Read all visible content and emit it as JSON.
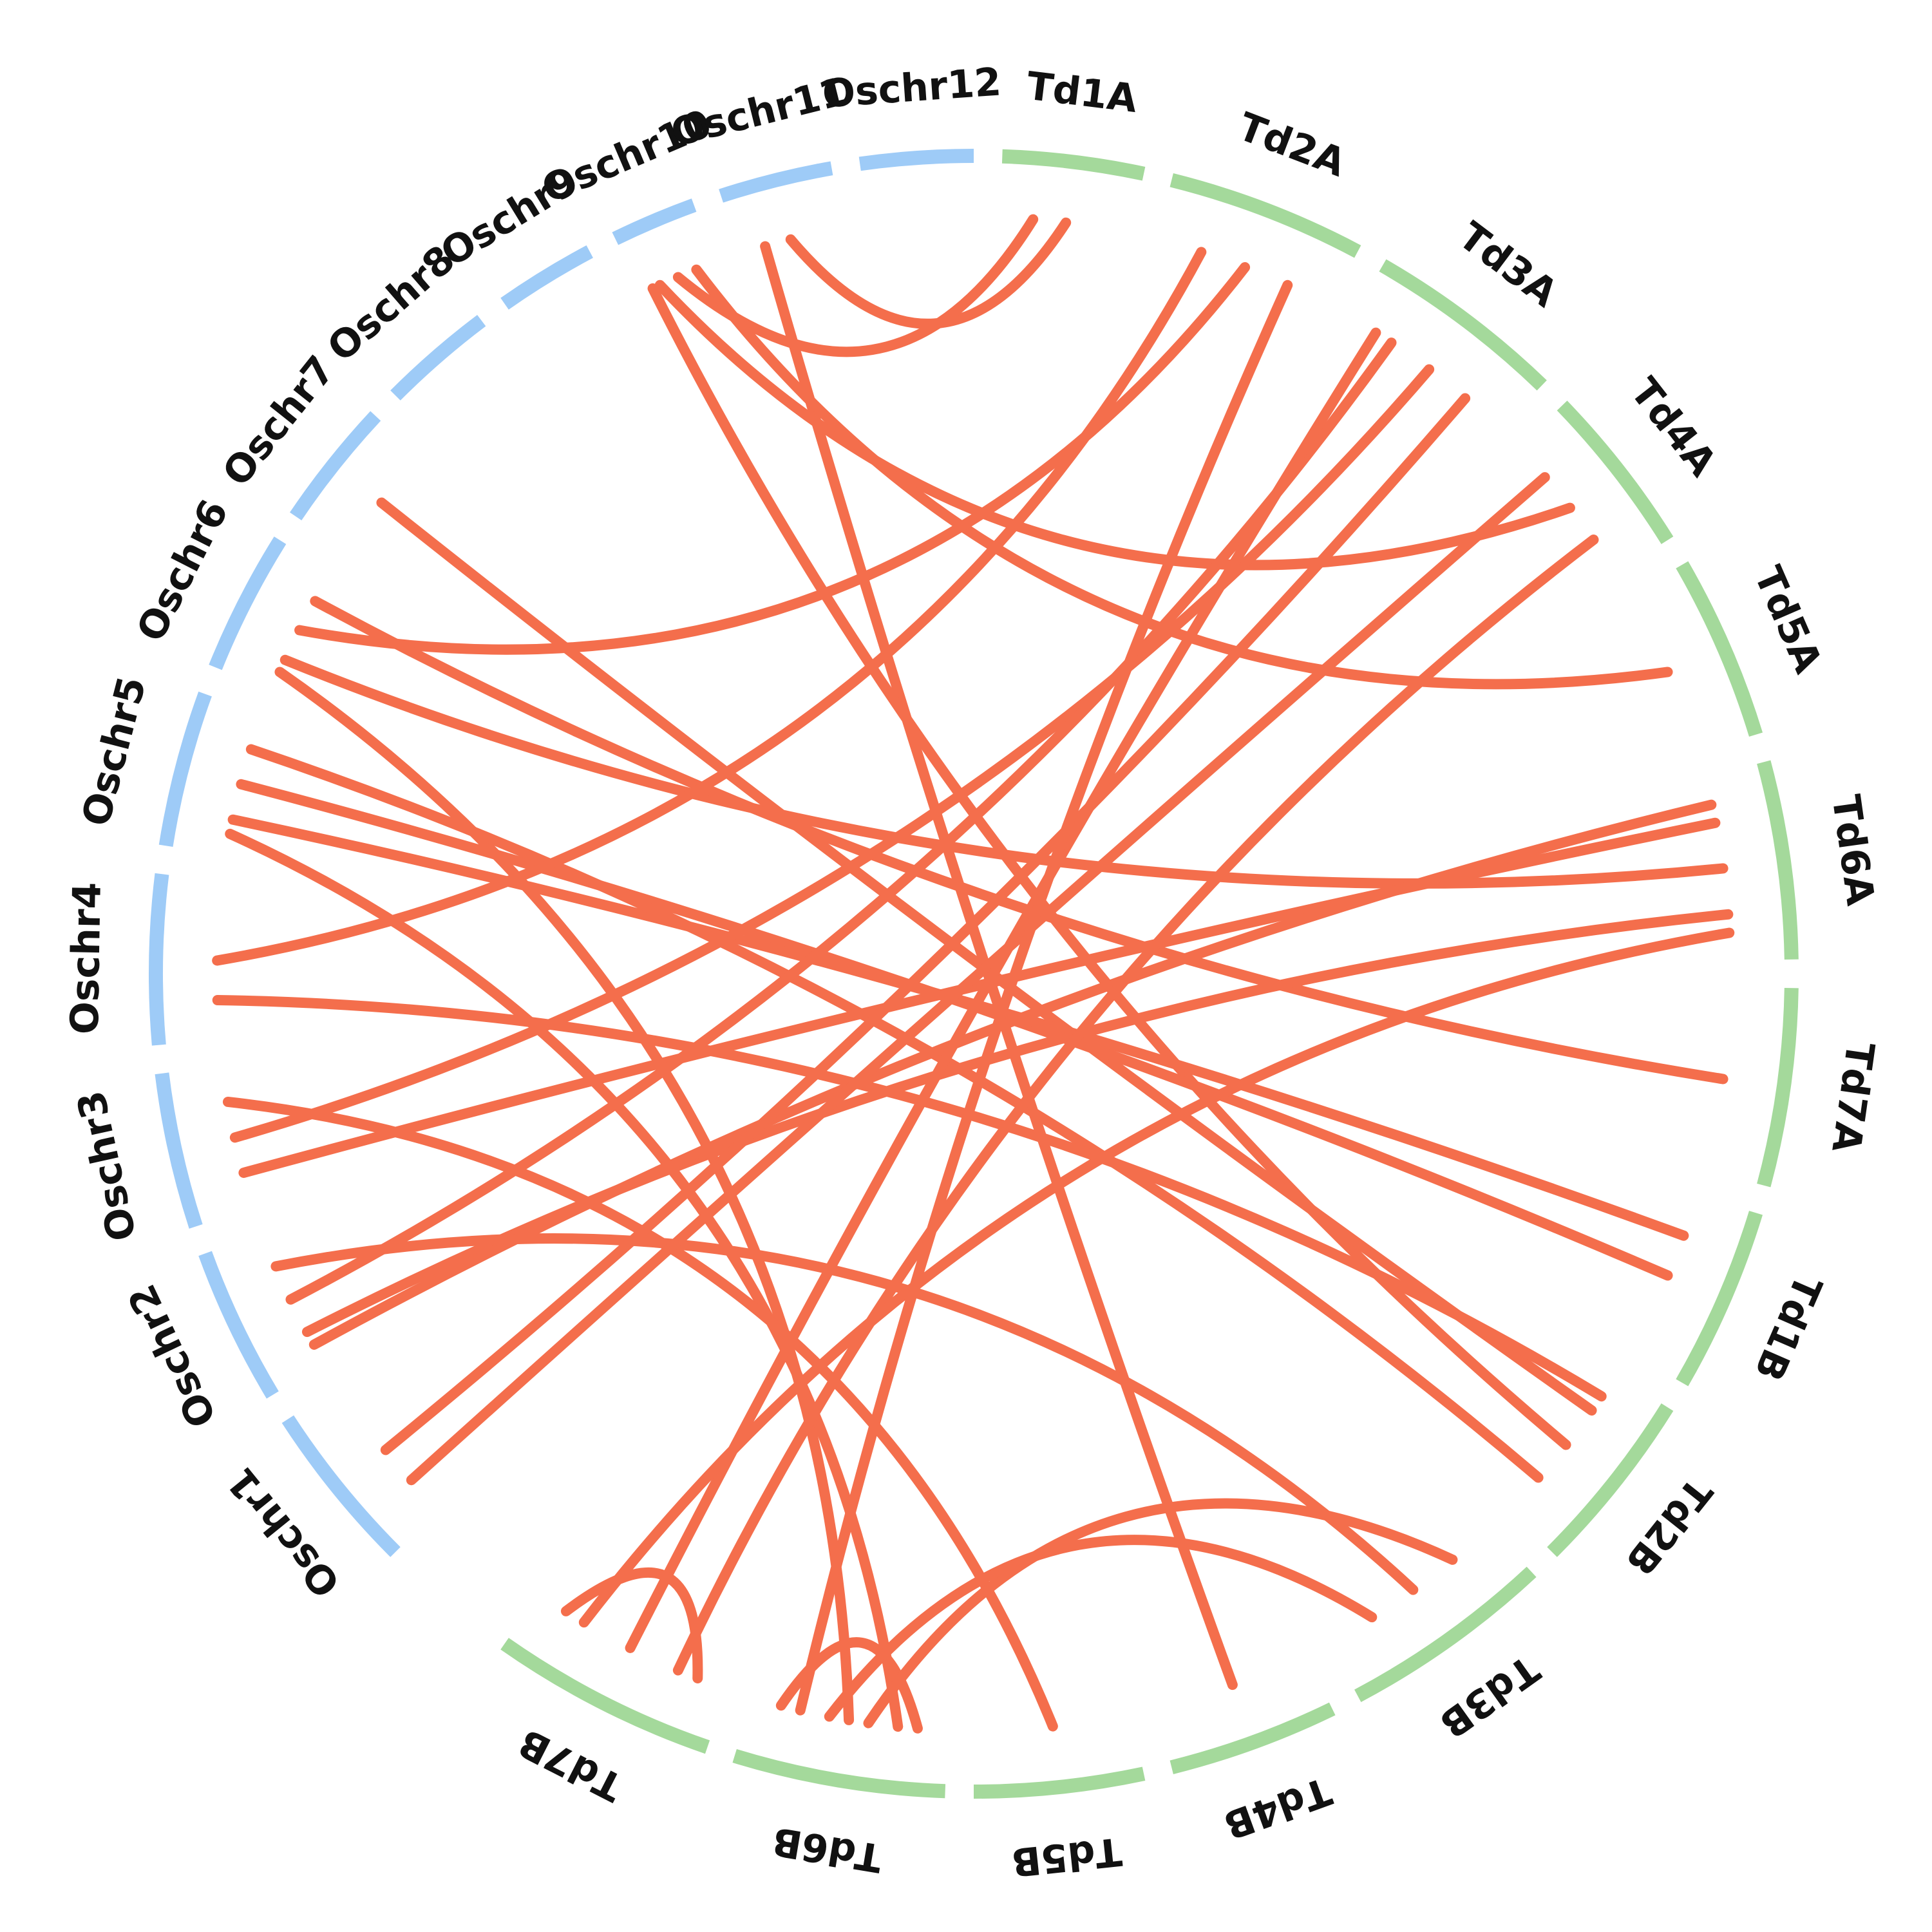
{
  "diagram": {
    "type": "circos-synteny",
    "colors": {
      "rice_chromosomes": "#9ecbf7",
      "wheat_chromosomes": "#a4d99b",
      "links": "#f46e4c"
    },
    "chromosomes": [
      {
        "label": "Oschr1",
        "group": "rice"
      },
      {
        "label": "Oschr2",
        "group": "rice"
      },
      {
        "label": "Oschr3",
        "group": "rice"
      },
      {
        "label": "Oschr4",
        "group": "rice"
      },
      {
        "label": "Oschr5",
        "group": "rice"
      },
      {
        "label": "Oschr6",
        "group": "rice"
      },
      {
        "label": "Oschr7",
        "group": "rice"
      },
      {
        "label": "Oschr8",
        "group": "rice"
      },
      {
        "label": "Oschr9",
        "group": "rice"
      },
      {
        "label": "Oschr10",
        "group": "rice"
      },
      {
        "label": "Oschr11",
        "group": "rice"
      },
      {
        "label": "Oschr12",
        "group": "rice"
      },
      {
        "label": "Td1A",
        "group": "wheat"
      },
      {
        "label": "Td2A",
        "group": "wheat"
      },
      {
        "label": "Td3A",
        "group": "wheat"
      },
      {
        "label": "Td4A",
        "group": "wheat"
      },
      {
        "label": "Td5A",
        "group": "wheat"
      },
      {
        "label": "Td6A",
        "group": "wheat"
      },
      {
        "label": "Td7A",
        "group": "wheat"
      },
      {
        "label": "Td1B",
        "group": "wheat"
      },
      {
        "label": "Td2B",
        "group": "wheat"
      },
      {
        "label": "Td3B",
        "group": "wheat"
      },
      {
        "label": "Td4B",
        "group": "wheat"
      },
      {
        "label": "Td5B",
        "group": "wheat"
      },
      {
        "label": "Td6B",
        "group": "wheat"
      },
      {
        "label": "Td7B",
        "group": "wheat"
      }
    ],
    "links": [
      {
        "from": "Oschr11",
        "to": "Td1A"
      },
      {
        "from": "Oschr11",
        "to": "Td4B"
      },
      {
        "from": "Oschr10",
        "to": "Td1A"
      },
      {
        "from": "Oschr10",
        "to": "Td4A"
      },
      {
        "from": "Oschr10",
        "to": "Td5A"
      },
      {
        "from": "Oschr10",
        "to": "Td2B"
      },
      {
        "from": "Oschr7",
        "to": "Td2B"
      },
      {
        "from": "Oschr6",
        "to": "Td2A"
      },
      {
        "from": "Oschr6",
        "to": "Td6A"
      },
      {
        "from": "Oschr6",
        "to": "Td7A"
      },
      {
        "from": "Oschr6",
        "to": "Td6B"
      },
      {
        "from": "Oschr5",
        "to": "Td1B"
      },
      {
        "from": "Oschr5",
        "to": "Td1B"
      },
      {
        "from": "Oschr5",
        "to": "Td2B"
      },
      {
        "from": "Oschr5",
        "to": "Td6B"
      },
      {
        "from": "Oschr4",
        "to": "Td2A"
      },
      {
        "from": "Oschr4",
        "to": "Td2B"
      },
      {
        "from": "Oschr3",
        "to": "Td3A"
      },
      {
        "from": "Oschr3",
        "to": "Td6A"
      },
      {
        "from": "Oschr3",
        "to": "Td5B"
      },
      {
        "from": "Oschr2",
        "to": "Td3A"
      },
      {
        "from": "Oschr2",
        "to": "Td6A"
      },
      {
        "from": "Oschr2",
        "to": "Td3B"
      },
      {
        "from": "Oschr2",
        "to": "Td6A"
      },
      {
        "from": "Oschr1",
        "to": "Td3A"
      },
      {
        "from": "Oschr1",
        "to": "Td4A"
      },
      {
        "from": "Td3A",
        "to": "Td7B"
      },
      {
        "from": "Td4A",
        "to": "Td7B"
      },
      {
        "from": "Td7B",
        "to": "Td6A"
      },
      {
        "from": "Td6B",
        "to": "Td2A"
      },
      {
        "from": "Td6B",
        "to": "Td6B"
      },
      {
        "from": "Td6B",
        "to": "Td3B"
      },
      {
        "from": "Td6B",
        "to": "Td3B"
      },
      {
        "from": "Td7B",
        "to": "Td7B"
      }
    ]
  }
}
